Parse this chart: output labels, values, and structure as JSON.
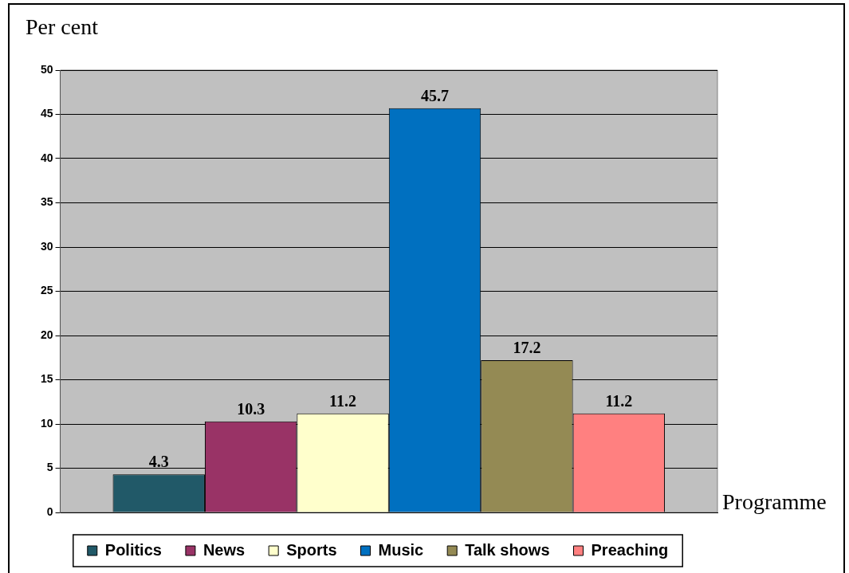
{
  "chart_data": {
    "type": "bar",
    "ylabel": "Per cent",
    "xlabel": "Programme",
    "categories": [
      null
    ],
    "series": [
      {
        "name": "Politics",
        "color": "#215968",
        "values": [
          4.3
        ]
      },
      {
        "name": "News",
        "color": "#993366",
        "values": [
          10.3
        ]
      },
      {
        "name": "Sports",
        "color": "#ffffcc",
        "values": [
          11.2
        ]
      },
      {
        "name": "Music",
        "color": "#0070c0",
        "values": [
          45.7
        ]
      },
      {
        "name": "Talk shows",
        "color": "#948a54",
        "values": [
          17.2
        ]
      },
      {
        "name": "Preaching",
        "color": "#ff8080",
        "values": [
          11.2
        ]
      }
    ],
    "ylim": [
      0,
      50
    ],
    "yticks": [
      0,
      5,
      10,
      15,
      20,
      25,
      30,
      35,
      40,
      45,
      50
    ],
    "grid": "y",
    "legend": "bottom",
    "data_labels": true,
    "tick_labels": "y"
  }
}
